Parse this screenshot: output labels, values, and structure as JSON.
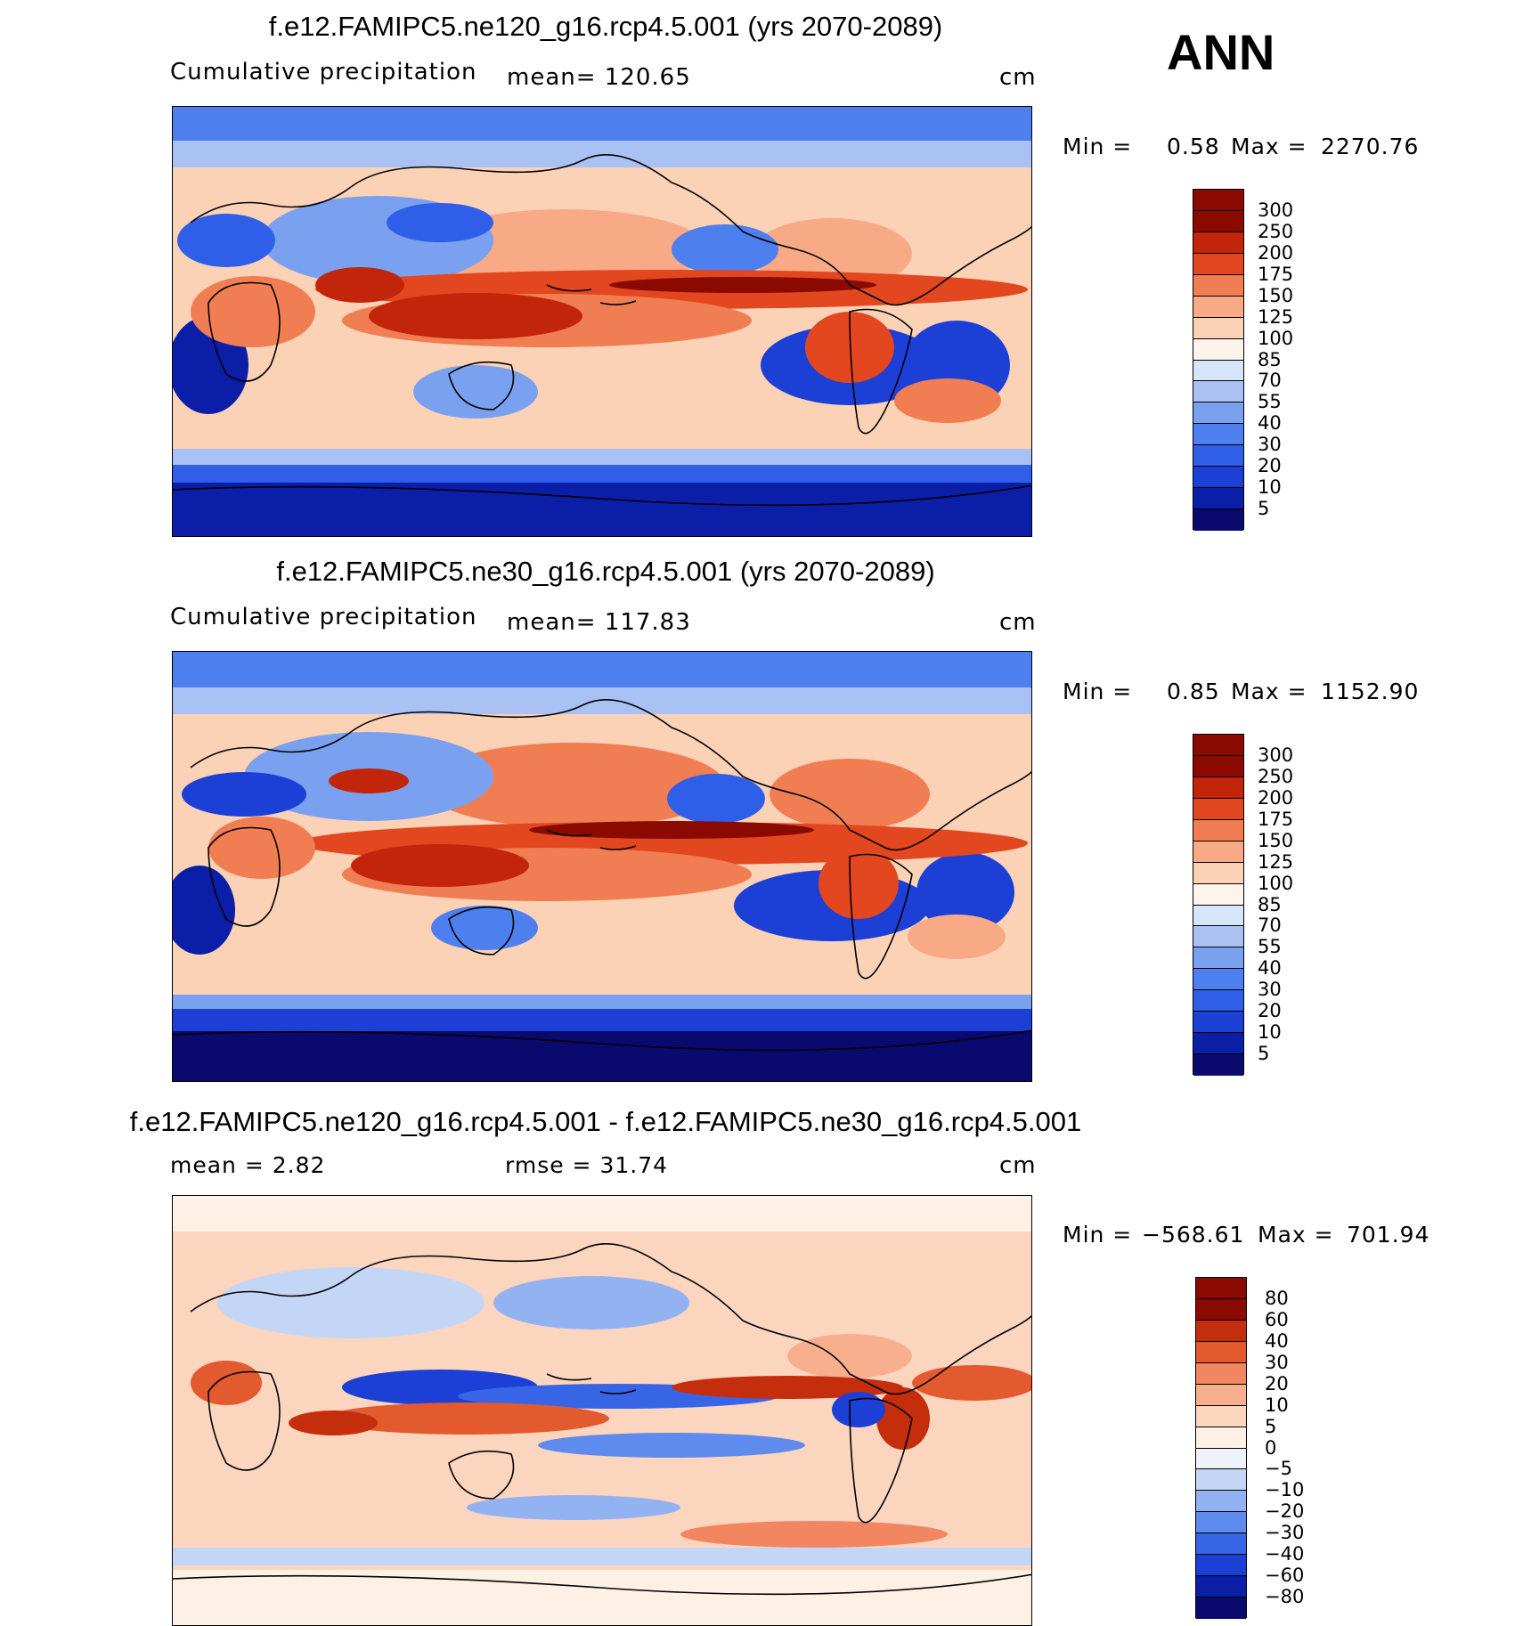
{
  "season": "ANN",
  "colors": {
    "precip_scale": [
      "#0a0a6e",
      "#0b1ea8",
      "#1c3fd6",
      "#2f5fe8",
      "#4d7fee",
      "#7aa1f0",
      "#a9c2f3",
      "#d6e5f8",
      "#fdf4ec",
      "#fbd2b6",
      "#f7aa85",
      "#f17d52",
      "#e2471f",
      "#c22509",
      "#8b0a00"
    ],
    "diff_scale": [
      "#0a0a6e",
      "#0b1ea8",
      "#1c3fd6",
      "#3865e6",
      "#5f8aee",
      "#93b2f2",
      "#c4d6f6",
      "#edf2fb",
      "#fdf1e6",
      "#fcd5bf",
      "#f8af8e",
      "#f28661",
      "#e35a2f",
      "#c52e0d",
      "#8b0a00"
    ]
  },
  "panels": [
    {
      "title": "f.e12.FAMIPC5.ne120_g16.rcp4.5.001 (yrs 2070-2089)",
      "left_label": "Cumulative precipitation",
      "center_label": "mean=  120.65",
      "units": "cm",
      "min_label": "Min  =",
      "min_value": "0.58",
      "max_label": "Max  =",
      "max_value": "2270.76",
      "contour_levels": [
        "300",
        "250",
        "200",
        "175",
        "150",
        "125",
        "100",
        "85",
        "70",
        "55",
        "40",
        "30",
        "20",
        "10",
        "5"
      ]
    },
    {
      "title": "f.e12.FAMIPC5.ne30_g16.rcp4.5.001 (yrs 2070-2089)",
      "left_label": "Cumulative precipitation",
      "center_label": "mean=  117.83",
      "units": "cm",
      "min_label": "Min  =",
      "min_value": "0.85",
      "max_label": "Max  =",
      "max_value": "1152.90",
      "contour_levels": [
        "300",
        "250",
        "200",
        "175",
        "150",
        "125",
        "100",
        "85",
        "70",
        "55",
        "40",
        "30",
        "20",
        "10",
        "5"
      ]
    },
    {
      "title": "f.e12.FAMIPC5.ne120_g16.rcp4.5.001 - f.e12.FAMIPC5.ne30_g16.rcp4.5.001",
      "left_label": "mean =     2.82",
      "center_label": "rmse =    31.74",
      "units": "cm",
      "min_label": "Min  =",
      "min_value": "−568.61",
      "max_label": "Max  =",
      "max_value": "701.94",
      "contour_levels": [
        "80",
        "60",
        "40",
        "30",
        "20",
        "10",
        "5",
        "0",
        "−5",
        "−10",
        "−20",
        "−30",
        "−40",
        "−60",
        "−80"
      ]
    }
  ]
}
